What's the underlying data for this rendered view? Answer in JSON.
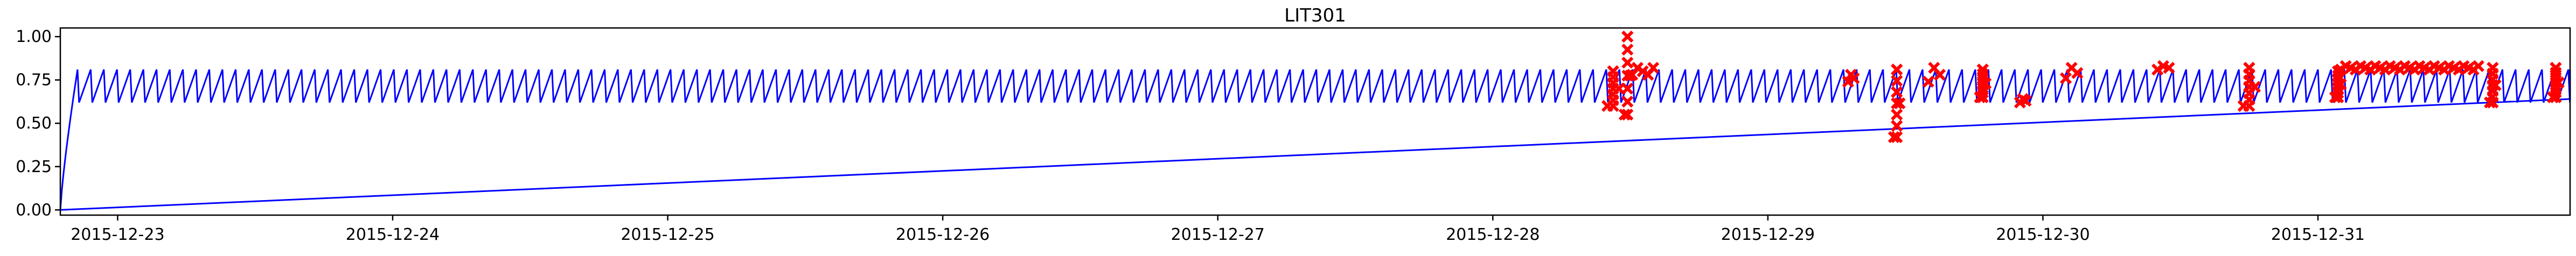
{
  "chart_data": {
    "type": "line",
    "title": "LIT301",
    "xlabel": "",
    "ylabel": "",
    "x_start": "2015-12-22T19:00",
    "x_end": "2015-12-31T22:00",
    "xticks": [
      "2015-12-23",
      "2015-12-24",
      "2015-12-25",
      "2015-12-26",
      "2015-12-27",
      "2015-12-28",
      "2015-12-29",
      "2015-12-30",
      "2015-12-31"
    ],
    "ylim": [
      -0.03,
      1.05
    ],
    "yticks": [
      "0.00",
      "0.25",
      "0.50",
      "0.75",
      "1.00"
    ],
    "grid": false,
    "legend": "none",
    "series": [
      {
        "role": "signal",
        "color": "#0000ff",
        "pattern": {
          "type": "sawtooth",
          "low": 0.62,
          "high": 0.81,
          "cycle_hours": 1.15,
          "ramp_up": {
            "from": "2015-12-22T19:00",
            "to": "2015-12-22T20:30",
            "start_value": 0.0,
            "end_value": 0.81
          }
        },
        "wraparound_line": {
          "from": {
            "x": "2015-12-22T19:00",
            "y": 0.0
          },
          "to": {
            "x": "2015-12-31T22:00",
            "y": 0.64
          }
        }
      },
      {
        "role": "anomaly",
        "color": "#ff0000",
        "marker": "x",
        "segments": [
          {
            "from": "2015-12-28T10:00",
            "to": "2015-12-28T11:00",
            "low": 0.6,
            "high": 0.8
          },
          {
            "from": "2015-12-28T11:30",
            "to": "2015-12-28T12:00",
            "low": 0.55,
            "high": 1.0
          },
          {
            "from": "2015-12-28T12:10",
            "to": "2015-12-28T14:00",
            "low": 0.78,
            "high": 0.82
          },
          {
            "from": "2015-12-29T07:00",
            "to": "2015-12-29T07:30",
            "low": 0.74,
            "high": 0.78
          },
          {
            "from": "2015-12-29T11:00",
            "to": "2015-12-29T11:30",
            "low": 0.42,
            "high": 0.81
          },
          {
            "from": "2015-12-29T14:00",
            "to": "2015-12-29T15:00",
            "low": 0.74,
            "high": 0.82
          },
          {
            "from": "2015-12-29T18:30",
            "to": "2015-12-29T19:00",
            "low": 0.65,
            "high": 0.81
          },
          {
            "from": "2015-12-29T22:00",
            "to": "2015-12-29T22:30",
            "low": 0.62,
            "high": 0.64
          },
          {
            "from": "2015-12-30T02:00",
            "to": "2015-12-30T03:00",
            "low": 0.76,
            "high": 0.82
          },
          {
            "from": "2015-12-30T10:00",
            "to": "2015-12-30T11:00",
            "low": 0.81,
            "high": 0.83
          },
          {
            "from": "2015-12-30T17:30",
            "to": "2015-12-30T18:30",
            "low": 0.6,
            "high": 0.82
          },
          {
            "from": "2015-12-31T01:30",
            "to": "2015-12-31T02:00",
            "low": 0.65,
            "high": 0.8
          },
          {
            "from": "2015-12-31T02:00",
            "to": "2015-12-31T14:00",
            "low": 0.81,
            "high": 0.83
          },
          {
            "from": "2015-12-31T15:00",
            "to": "2015-12-31T15:30",
            "low": 0.62,
            "high": 0.82
          },
          {
            "from": "2015-12-31T20:30",
            "to": "2015-12-31T21:00",
            "low": 0.65,
            "high": 0.82
          }
        ]
      }
    ]
  }
}
